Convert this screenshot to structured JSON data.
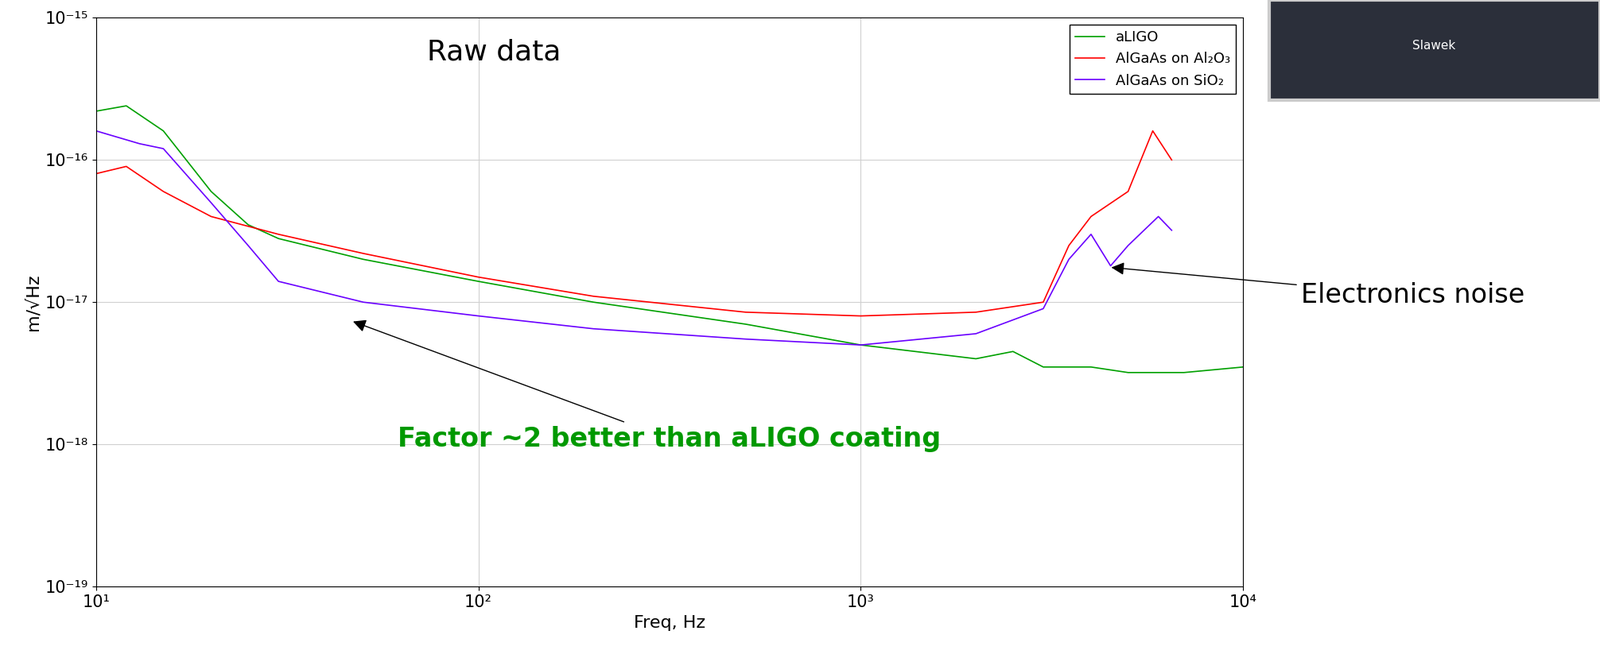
{
  "chart_data": {
    "type": "line",
    "title": "Raw data",
    "x_label": "Freq, Hz",
    "y_label": "m/√Hz",
    "log": true,
    "grid": true,
    "legend": "upper right",
    "xlim": [
      10,
      10000
    ],
    "ylim": [
      1e-19,
      1e-15
    ],
    "xticks": [
      {
        "value": 10,
        "label": "10¹"
      },
      {
        "value": 100,
        "label": "10²"
      },
      {
        "value": 1000,
        "label": "10³"
      },
      {
        "value": 10000,
        "label": "10⁴"
      }
    ],
    "yticks": [
      {
        "value": 1e-19,
        "label": "10⁻¹⁹"
      },
      {
        "value": 1e-18,
        "label": "10⁻¹⁸"
      },
      {
        "value": 1e-17,
        "label": "10⁻¹⁷"
      },
      {
        "value": 1e-16,
        "label": "10⁻¹⁶"
      },
      {
        "value": 1e-15,
        "label": "10⁻¹⁵"
      }
    ],
    "annotations": [
      {
        "text": "Factor ~2 better than aLIGO coating",
        "color": "#009900"
      },
      {
        "text": "Electronics noise",
        "color": "#000000"
      }
    ],
    "inset_label": "Slawek",
    "series": [
      {
        "name": "aLIGO",
        "color": "#00a000",
        "x": [
          10,
          12,
          15,
          20,
          25,
          30,
          50,
          100,
          200,
          500,
          1000,
          2000,
          2500,
          3000,
          4000,
          5000,
          7000,
          10000
        ],
        "values": [
          2.2e-16,
          2.4e-16,
          1.6e-16,
          6e-17,
          3.5e-17,
          2.8e-17,
          2e-17,
          1.4e-17,
          1e-17,
          7e-18,
          5e-18,
          4e-18,
          4.5e-18,
          3.5e-18,
          3.5e-18,
          3.2e-18,
          3.2e-18,
          3.5e-18
        ]
      },
      {
        "name": "AlGaAs on Al₂O₃",
        "color": "#ff0000",
        "x": [
          10,
          12,
          15,
          20,
          30,
          50,
          100,
          200,
          500,
          1000,
          2000,
          3000,
          3500,
          4000,
          5000,
          5800,
          6500
        ],
        "values": [
          8e-17,
          9e-17,
          6e-17,
          4e-17,
          3e-17,
          2.2e-17,
          1.5e-17,
          1.1e-17,
          8.5e-18,
          8e-18,
          8.5e-18,
          1e-17,
          2.5e-17,
          4e-17,
          6e-17,
          1.6e-16,
          1e-16
        ]
      },
      {
        "name": "AlGaAs on SiO₂",
        "color": "#6a00ff",
        "x": [
          10,
          13,
          15,
          20,
          25,
          30,
          50,
          100,
          200,
          500,
          1000,
          2000,
          3000,
          3500,
          4000,
          4500,
          5000,
          6000,
          6500
        ],
        "values": [
          1.6e-16,
          1.3e-16,
          1.2e-16,
          5e-17,
          2.5e-17,
          1.4e-17,
          1e-17,
          8e-18,
          6.5e-18,
          5.5e-18,
          5e-18,
          6e-18,
          9e-18,
          2e-17,
          3e-17,
          1.8e-17,
          2.5e-17,
          4e-17,
          3.2e-17
        ]
      }
    ]
  }
}
